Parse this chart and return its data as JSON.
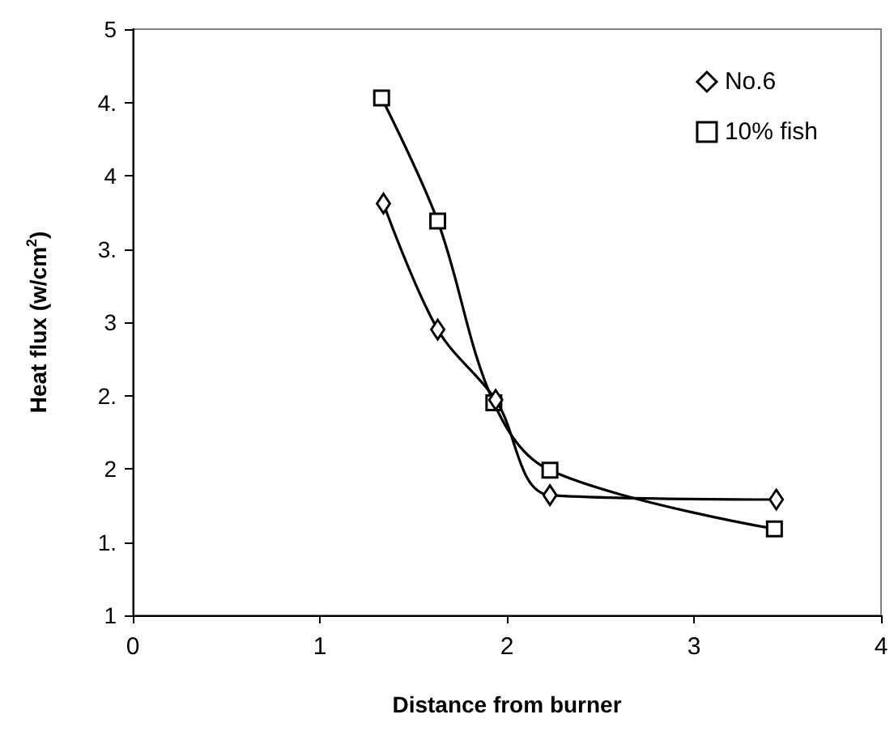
{
  "chart_data": {
    "type": "line",
    "xlabel": "Distance from burner",
    "ylabel": "Heat flux (w/cm$^{2}$)",
    "series": [
      {
        "name": "No.6",
        "color": "#000000",
        "marker": "diamond",
        "x": [
          1.34,
          1.63,
          1.94,
          2.23,
          3.44
        ],
        "values": [
          3.81,
          2.95,
          2.47,
          1.82,
          1.79
        ]
      },
      {
        "name": "10% fish",
        "color": "#000000",
        "marker": "square",
        "x": [
          1.33,
          1.63,
          1.93,
          2.23,
          3.43
        ],
        "values": [
          4.53,
          3.69,
          2.45,
          1.99,
          1.59
        ]
      }
    ],
    "xlim": [
      0,
      4
    ],
    "xticks": [
      0,
      1,
      2,
      3,
      4
    ],
    "ylim": [
      1,
      5
    ],
    "yticks": [
      1,
      {
        "value": 1.5,
        "label": "1."
      },
      2,
      {
        "value": 2.5,
        "label": "2."
      },
      3,
      {
        "value": 3.5,
        "label": "3."
      },
      4,
      {
        "value": 4.5,
        "label": "4."
      },
      5
    ],
    "grid": false,
    "legend": "top right"
  }
}
